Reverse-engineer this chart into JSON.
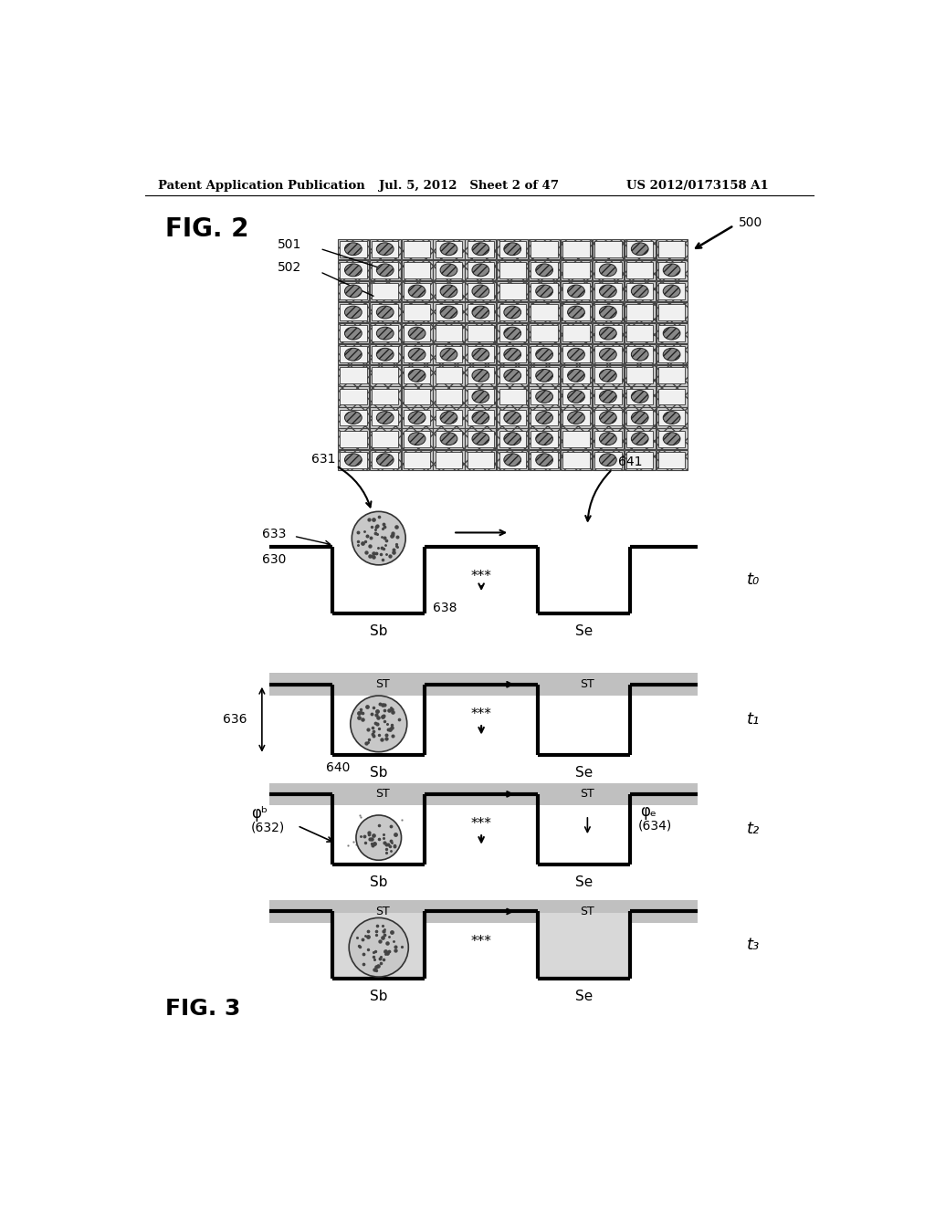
{
  "header_left": "Patent Application Publication",
  "header_mid": "Jul. 5, 2012   Sheet 2 of 47",
  "header_right": "US 2012/0173158 A1",
  "fig2_label": "FIG. 2",
  "fig3_label": "FIG. 3",
  "label_500": "500",
  "label_501": "501",
  "label_502": "502",
  "label_630": "630",
  "label_631": "631",
  "label_633": "633",
  "label_636": "636",
  "label_638": "638",
  "label_640": "640",
  "label_641": "641",
  "label_Sb": "Sb",
  "label_Se": "Se",
  "label_ST": "ST",
  "label_t0": "t₀",
  "label_t1": "t₁",
  "label_t2": "t₂",
  "label_t3": "t₃",
  "label_phi_b": "φᵇ",
  "label_632": "(632)",
  "label_phi_e": "φₑ",
  "label_634": "(634)",
  "bg_color": "#ffffff",
  "stripe_color": "#c8c8c8",
  "well_fill_t3": "#d0d0d0",
  "cell_bg": "#d8d8d8",
  "cell_border": "#555555"
}
